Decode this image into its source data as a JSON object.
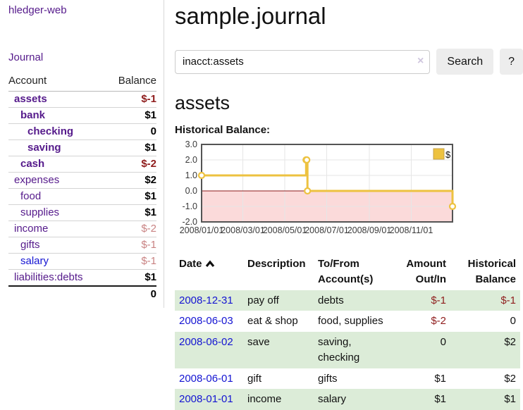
{
  "colors": {
    "purple": "#551a8b",
    "blue": "#1414d2",
    "red": "#8f1d1d",
    "rose": "#c98383",
    "lavender": "#cfc6de",
    "rowgreen": "#dcecd8",
    "chart_gold": "#edc240",
    "chart_negative_bg": "#fbdada",
    "chart_zero_line": "#8b1a1a"
  },
  "app": {
    "brand": "hledger-web",
    "nav_journal": "Journal"
  },
  "sidebar": {
    "headers": {
      "account": "Account",
      "balance": "Balance"
    },
    "accounts": [
      {
        "name": "assets",
        "balance": "$-1",
        "depth": 1,
        "bold": true,
        "balance_style": "negative"
      },
      {
        "name": "bank",
        "balance": "$1",
        "depth": 2,
        "bold": true,
        "balance_style": "normal"
      },
      {
        "name": "checking",
        "balance": "0",
        "depth": 3,
        "bold": true,
        "balance_style": "normal"
      },
      {
        "name": "saving",
        "balance": "$1",
        "depth": 3,
        "bold": true,
        "balance_style": "normal"
      },
      {
        "name": "cash",
        "balance": "$-2",
        "depth": 2,
        "bold": true,
        "balance_style": "negative"
      },
      {
        "name": "expenses",
        "balance": "$2",
        "depth": 1,
        "bold": false,
        "balance_style": "normal"
      },
      {
        "name": "food",
        "balance": "$1",
        "depth": 2,
        "bold": false,
        "balance_style": "normal"
      },
      {
        "name": "supplies",
        "balance": "$1",
        "depth": 2,
        "bold": false,
        "balance_style": "normal"
      },
      {
        "name": "income",
        "balance": "$-2",
        "depth": 1,
        "bold": false,
        "balance_style": "muted-negative"
      },
      {
        "name": "gifts",
        "balance": "$-1",
        "depth": 2,
        "bold": false,
        "balance_style": "muted-negative"
      },
      {
        "name": "salary",
        "balance": "$-1",
        "depth": 2,
        "bold": false,
        "balance_style": "muted-negative",
        "link_style": "blue"
      },
      {
        "name": "liabilities:debts",
        "balance": "$1",
        "depth": 1,
        "bold": false,
        "balance_style": "normal"
      }
    ],
    "total": "0"
  },
  "main": {
    "title": "sample.journal",
    "search": {
      "value": "inacct:assets",
      "clear_icon": "×",
      "button_label": "Search",
      "help_label": "?"
    },
    "account_heading": "assets",
    "chart_heading": "Historical Balance:"
  },
  "chart_data": {
    "type": "line",
    "title": "Historical Balance:",
    "legend": {
      "label": "$",
      "position": "top-right"
    },
    "x_range": [
      "2008/01/01",
      "2008/12/31"
    ],
    "x_ticks": [
      "2008/01/01",
      "2008/03/01",
      "2008/05/01",
      "2008/07/01",
      "2008/09/01",
      "2008/11/01"
    ],
    "y_ticks": [
      "3.0",
      "2.0",
      "1.0",
      "0.0",
      "-1.0",
      "-2.0"
    ],
    "ylim": [
      -2,
      3
    ],
    "grid": true,
    "negative_region": true,
    "series": [
      {
        "name": "$",
        "color": "#edc240",
        "style": "step",
        "points": [
          [
            "2008/01/01",
            1
          ],
          [
            "2008/06/01",
            2
          ],
          [
            "2008/06/02",
            2
          ],
          [
            "2008/06/03",
            0
          ],
          [
            "2008/12/31",
            -1
          ]
        ]
      }
    ]
  },
  "transactions": {
    "headers": {
      "date": "Date",
      "sort_icon": "chevron-up",
      "description": "Description",
      "accounts": "To/From Account(s)",
      "amount": "Amount Out/In",
      "balance": "Historical Balance"
    },
    "rows": [
      {
        "date": "2008-12-31",
        "description": "pay off",
        "accounts": "debts",
        "amount": "$-1",
        "balance": "$-1",
        "amount_negative": true,
        "balance_negative": true
      },
      {
        "date": "2008-06-03",
        "description": "eat & shop",
        "accounts": "food, supplies",
        "amount": "$-2",
        "balance": "0",
        "amount_negative": true,
        "balance_negative": false
      },
      {
        "date": "2008-06-02",
        "description": "save",
        "accounts": "saving, checking",
        "amount": "0",
        "balance": "$2",
        "amount_negative": false,
        "balance_negative": false
      },
      {
        "date": "2008-06-01",
        "description": "gift",
        "accounts": "gifts",
        "amount": "$1",
        "balance": "$2",
        "amount_negative": false,
        "balance_negative": false
      },
      {
        "date": "2008-01-01",
        "description": "income",
        "accounts": "salary",
        "amount": "$1",
        "balance": "$1",
        "amount_negative": false,
        "balance_negative": false
      }
    ]
  }
}
